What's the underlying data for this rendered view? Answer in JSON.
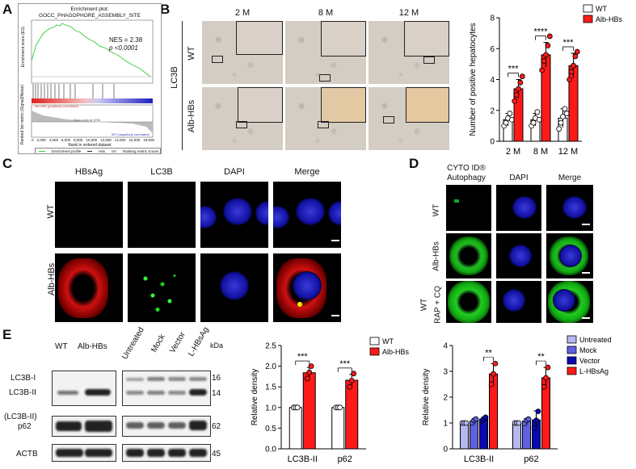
{
  "panel_letters": {
    "A": "A",
    "B": "B",
    "C": "C",
    "D": "D",
    "E": "E"
  },
  "gsea": {
    "title_line1": "Enrichment plot:",
    "title_line2": "GOCC_PHAGOPHORE_ASSEMBLY_SITE",
    "nes": "NES = 2.38",
    "p": "p <0.0001",
    "ylabel_top": "Enrichment score (ES)",
    "ylabel_bottom": "Ranked list metric (Signal2Noise)",
    "xlabel": "Rank in ordered dataset",
    "xticks": [
      "0",
      "2,000",
      "4,000",
      "6,000",
      "8,000",
      "10,000",
      "12,000",
      "14,000",
      "16,000",
      "18,000"
    ],
    "pos_label": "Alb-HBs (positively correlated)",
    "neg_label": "WT (negatively correlated)",
    "zero_label": "Zero cross at 8766",
    "legend": [
      "Enrichment profile",
      "Hits",
      "Ranking metric scores"
    ],
    "line_color": "#33cc33"
  },
  "panel_b": {
    "cols": [
      "2 M",
      "8 M",
      "12 M"
    ],
    "rows": [
      "WT",
      "Alb-HBs"
    ],
    "stain": "LC3B"
  },
  "chart_data": [
    {
      "type": "bar",
      "id": "b",
      "categories": [
        "2 M",
        "8 M",
        "12 M"
      ],
      "series": [
        {
          "name": "WT",
          "color": "#ffffff",
          "values": [
            1.4,
            1.4,
            1.5
          ],
          "err": [
            0.4,
            0.4,
            0.6
          ],
          "points": [
            [
              1.0,
              1.2,
              1.5,
              1.8,
              1.4
            ],
            [
              1.0,
              1.2,
              1.5,
              1.9,
              1.4
            ],
            [
              0.8,
              1.2,
              1.6,
              2.1,
              1.8
            ]
          ]
        },
        {
          "name": "Alb-HBs",
          "color": "#ff1a1a",
          "values": [
            3.4,
            5.6,
            4.9
          ],
          "err": [
            0.6,
            0.8,
            0.8
          ],
          "points": [
            [
              2.6,
              3.0,
              3.4,
              3.8,
              4.2
            ],
            [
              4.6,
              5.2,
              5.6,
              6.2,
              6.8
            ],
            [
              4.0,
              4.5,
              4.9,
              5.5,
              5.8
            ]
          ]
        }
      ],
      "ylabel": "Number of positive hepatocytes",
      "ylim": [
        0,
        8
      ],
      "yticks": [
        0,
        2,
        4,
        6,
        8
      ],
      "significance": [
        "***",
        "****",
        "***"
      ],
      "legend_position": "top-right"
    },
    {
      "type": "bar",
      "id": "e1",
      "categories": [
        "LC3B-II",
        "p62"
      ],
      "series": [
        {
          "name": "WT",
          "color": "#ffffff",
          "values": [
            1.0,
            1.0
          ],
          "err": [
            0,
            0
          ],
          "points": [
            [
              1,
              1,
              1
            ],
            [
              1,
              1,
              1
            ]
          ]
        },
        {
          "name": "Alb-HBs",
          "color": "#ff1a1a",
          "values": [
            1.84,
            1.66
          ],
          "err": [
            0.13,
            0.14
          ],
          "points": [
            [
              1.7,
              1.85,
              2.0
            ],
            [
              1.5,
              1.65,
              1.82
            ]
          ]
        }
      ],
      "ylabel": "Relative density",
      "ylim": [
        0,
        2.5
      ],
      "yticks": [
        0.0,
        0.5,
        1.0,
        1.5,
        2.0,
        2.5
      ],
      "significance": [
        "***",
        "***"
      ],
      "legend_position": "top-right"
    },
    {
      "type": "bar",
      "id": "e2",
      "categories": [
        "LC3B-II",
        "p62"
      ],
      "series": [
        {
          "name": "Untreated",
          "color": "#b8b8f0",
          "values": [
            1.0,
            1.0
          ],
          "err": [
            0,
            0
          ],
          "points": [
            [
              1,
              1,
              1
            ],
            [
              1,
              1,
              1
            ]
          ]
        },
        {
          "name": "Mock",
          "color": "#6060e0",
          "values": [
            1.08,
            1.07
          ],
          "err": [
            0.08,
            0.1
          ],
          "points": [
            [
              1.0,
              1.1,
              1.15
            ],
            [
              0.98,
              1.1,
              1.15
            ]
          ]
        },
        {
          "name": "Vector",
          "color": "#0a0ab0",
          "values": [
            1.15,
            1.12
          ],
          "err": [
            0.08,
            0.35
          ],
          "points": [
            [
              1.08,
              1.15,
              1.22
            ],
            [
              0.8,
              1.1,
              1.45
            ]
          ]
        },
        {
          "name": "L-HBsAg",
          "color": "#ff1a1a",
          "values": [
            2.9,
            2.75
          ],
          "err": [
            0.4,
            0.4
          ],
          "points": [
            [
              2.5,
              2.9,
              3.3
            ],
            [
              2.4,
              2.75,
              3.15
            ]
          ]
        }
      ],
      "ylabel": "Relative density",
      "ylim": [
        0,
        4
      ],
      "yticks": [
        0,
        1,
        2,
        3,
        4
      ],
      "significance": [
        "**",
        "**"
      ],
      "legend_position": "top-right"
    }
  ],
  "panel_c": {
    "cols": [
      "HBsAg",
      "LC3B",
      "DAPI",
      "Merge"
    ],
    "rows": [
      "WT",
      "Alb-HBs"
    ]
  },
  "panel_d": {
    "col1_line1": "CYTO ID®",
    "col1_line2": "Autophagy",
    "cols": [
      "DAPI",
      "Merge"
    ],
    "rows": [
      "WT",
      "Alb-HBs"
    ],
    "row3_line1": "WT",
    "row3_line2": "RAP + CQ"
  },
  "panel_e_blot": {
    "left_cols": [
      "WT",
      "Alb-HBs"
    ],
    "right_cols": [
      "Untreated",
      "Mock",
      "Vector",
      "L-HBsAg"
    ],
    "kda": "kDa",
    "row_labels": [
      "LC3B-I",
      "LC3B-II",
      "(LC3B-II)",
      "p62",
      "ACTB"
    ],
    "kda_values": [
      "16",
      "14",
      "62",
      "45"
    ]
  }
}
